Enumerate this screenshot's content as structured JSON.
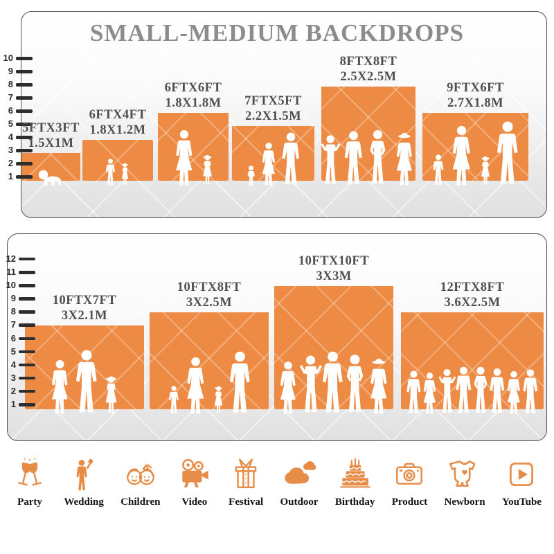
{
  "title": "SMALL-MEDIUM BACKDROPS",
  "colors": {
    "orange": "#ED8A43",
    "icon_orange": "#E78C47",
    "title_gray": "#8C8C8C",
    "label_gray": "#4F4F4F"
  },
  "top_panel": {
    "scale_ticks": [
      10,
      9,
      8,
      7,
      6,
      5,
      4,
      3,
      2,
      1
    ],
    "backdrops": [
      {
        "size_ft": "5FTX3FT",
        "size_m": "1.5X1M",
        "w_ft": 5,
        "h_ft": 3,
        "people": [
          [
            "baby",
            26
          ]
        ]
      },
      {
        "size_ft": "6FTX4FT",
        "size_m": "1.8X1.2M",
        "w_ft": 6,
        "h_ft": 4,
        "people": [
          [
            "boy",
            40
          ],
          [
            "girl",
            34
          ]
        ]
      },
      {
        "size_ft": "6FTX6FT",
        "size_m": "1.8X1.8M",
        "w_ft": 6,
        "h_ft": 6,
        "people": [
          [
            "woman",
            82
          ],
          [
            "girl",
            46
          ]
        ]
      },
      {
        "size_ft": "7FTX5FT",
        "size_m": "2.2X1.5M",
        "w_ft": 7,
        "h_ft": 5,
        "people": [
          [
            "child",
            30
          ],
          [
            "woman",
            64
          ],
          [
            "man",
            78
          ]
        ]
      },
      {
        "size_ft": "8FTX8FT",
        "size_m": "2.5X2.5M",
        "w_ft": 8,
        "h_ft": 8,
        "people": [
          [
            "manup",
            76
          ],
          [
            "man",
            80
          ],
          [
            "manhips",
            82
          ],
          [
            "womanhat",
            78
          ]
        ]
      },
      {
        "size_ft": "9FTX6FT",
        "size_m": "2.7X1.8M",
        "w_ft": 9,
        "h_ft": 6,
        "people": [
          [
            "boy",
            46
          ],
          [
            "woman",
            88
          ],
          [
            "girl",
            44
          ],
          [
            "man",
            94
          ]
        ]
      }
    ]
  },
  "bottom_panel": {
    "scale_ticks": [
      12,
      11,
      10,
      9,
      8,
      7,
      6,
      5,
      4,
      3,
      2,
      1
    ],
    "backdrops": [
      {
        "size_ft": "10FTX7FT",
        "size_m": "3X2.1M",
        "w_ft": 10,
        "h_ft": 7,
        "people": [
          [
            "woman",
            80
          ],
          [
            "man",
            94
          ],
          [
            "girl",
            56
          ]
        ]
      },
      {
        "size_ft": "10FTX8FT",
        "size_m": "3X2.5M",
        "w_ft": 10,
        "h_ft": 8,
        "people": [
          [
            "boy",
            42
          ],
          [
            "woman",
            84
          ],
          [
            "girl",
            42
          ],
          [
            "man",
            92
          ]
        ]
      },
      {
        "size_ft": "10FTX10FT",
        "size_m": "3X3M",
        "w_ft": 10,
        "h_ft": 10,
        "people": [
          [
            "woman",
            78
          ],
          [
            "manup",
            88
          ],
          [
            "man",
            92
          ],
          [
            "manhips",
            88
          ],
          [
            "womanhat",
            82
          ]
        ]
      },
      {
        "size_ft": "12FTX8FT",
        "size_m": "3.6X2.5M",
        "w_ft": 12,
        "h_ft": 8,
        "people": [
          [
            "man",
            64
          ],
          [
            "woman",
            62
          ],
          [
            "manup",
            68
          ],
          [
            "man",
            70
          ],
          [
            "manhips",
            70
          ],
          [
            "man",
            68
          ],
          [
            "woman",
            64
          ],
          [
            "man",
            66
          ]
        ]
      }
    ]
  },
  "categories": [
    {
      "label": "Party",
      "icon": "party-icon"
    },
    {
      "label": "Wedding",
      "icon": "wedding-icon"
    },
    {
      "label": "Children",
      "icon": "children-icon"
    },
    {
      "label": "Video",
      "icon": "video-icon"
    },
    {
      "label": "Festival",
      "icon": "festival-icon"
    },
    {
      "label": "Outdoor",
      "icon": "outdoor-icon"
    },
    {
      "label": "Birthday",
      "icon": "birthday-icon"
    },
    {
      "label": "Product",
      "icon": "product-icon"
    },
    {
      "label": "Newborn",
      "icon": "newborn-icon"
    },
    {
      "label": "YouTube",
      "icon": "youtube-icon"
    }
  ]
}
